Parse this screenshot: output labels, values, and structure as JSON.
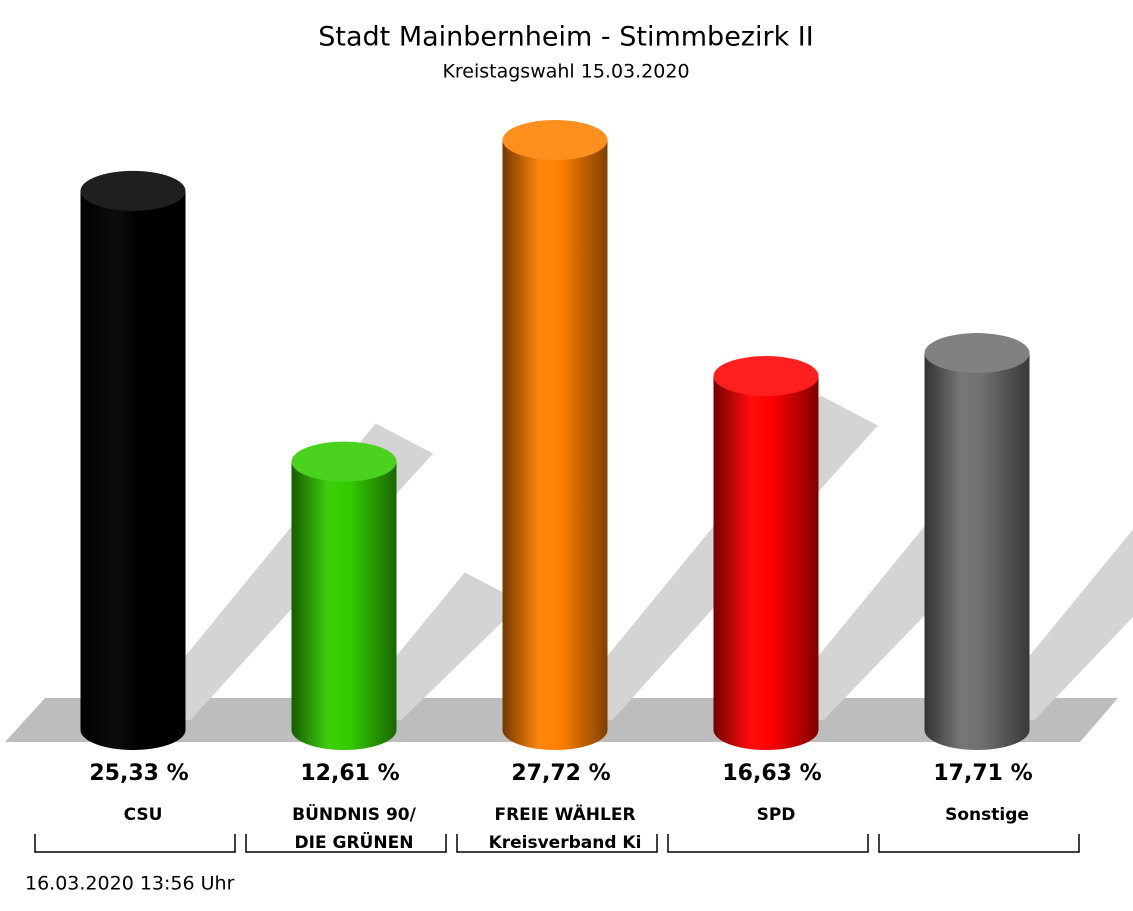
{
  "chart_data": {
    "type": "cylinder-bar",
    "title": "Stadt Mainbernheim - Stimmbezirk II",
    "subtitle": "Kreistagswahl 15.03.2020",
    "categories": [
      [
        "CSU"
      ],
      [
        "BÜNDNIS 90/",
        "DIE GRÜNEN"
      ],
      [
        "FREIE WÄHLER",
        "Kreisverband Ki"
      ],
      [
        "SPD"
      ],
      [
        "Sonstige"
      ]
    ],
    "values": [
      25.33,
      12.61,
      27.72,
      16.63,
      17.71
    ],
    "value_labels": [
      "25,33 %",
      "12,61 %",
      "27,72 %",
      "16,63 %",
      "17,71 %"
    ],
    "colors": [
      "#000000",
      "#33cc00",
      "#ff8000",
      "#ff0000",
      "#707070"
    ],
    "footer": "16.03.2020 13:56 Uhr"
  }
}
